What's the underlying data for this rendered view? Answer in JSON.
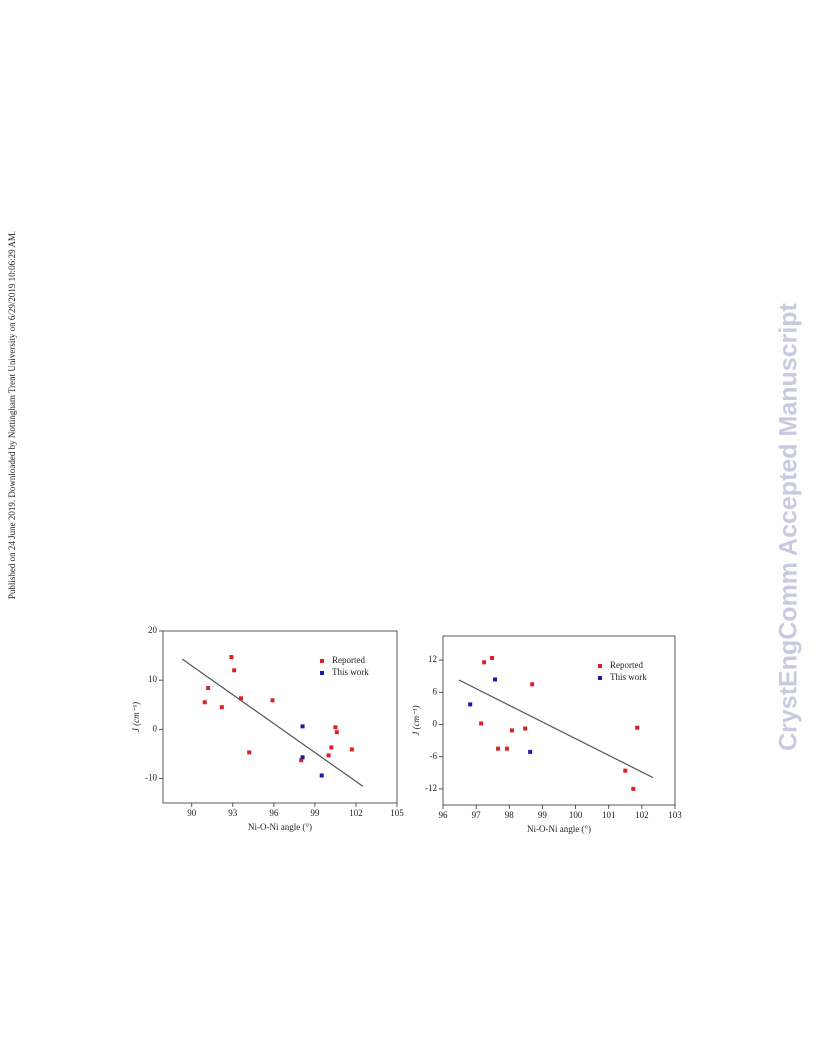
{
  "side_note": "Published on 24 June 2019. Downloaded by Nottingham Trent University on 6/29/2019 10:06:29 AM.",
  "watermark": "CrystEngComm Accepted Manuscript",
  "chart_data": [
    {
      "type": "scatter",
      "xlabel": "Ni-O-Ni angle (°)",
      "ylabel": "J (cm⁻¹)",
      "xlim": [
        87.9,
        105
      ],
      "xticks": [
        90,
        93,
        96,
        99,
        102,
        105
      ],
      "ylim": [
        -15,
        20
      ],
      "yticks": [
        -10,
        0,
        10,
        20
      ],
      "legend": "upper right",
      "series": [
        {
          "name": "Reported",
          "color": "#e02020",
          "x": [
            90.95,
            91.2,
            92.2,
            92.9,
            93.1,
            93.6,
            94.2,
            95.9,
            98.0,
            100.0,
            100.2,
            100.5,
            100.6,
            101.7
          ],
          "y": [
            5.5,
            8.4,
            4.5,
            14.7,
            12.0,
            6.3,
            -4.7,
            5.9,
            -6.3,
            -5.3,
            -3.7,
            0.4,
            -0.6,
            -4.1
          ]
        },
        {
          "name": "This work",
          "color": "#1a1aa8",
          "x": [
            98.1,
            98.1,
            99.5
          ],
          "y": [
            0.6,
            -5.7,
            -9.4
          ]
        }
      ],
      "fit": {
        "color": "#555555",
        "x": [
          89.3,
          102.5
        ],
        "y": [
          14.3,
          -11.6
        ]
      }
    },
    {
      "type": "scatter",
      "xlabel": "Ni-O-Ni angle (°)",
      "ylabel": "J (cm⁻¹)",
      "xlim": [
        96,
        103
      ],
      "xticks": [
        96,
        97,
        98,
        99,
        100,
        101,
        102,
        103
      ],
      "ylim": [
        -15,
        16.5
      ],
      "yticks": [
        -12,
        -6,
        0,
        6,
        12
      ],
      "legend": "upper right",
      "series": [
        {
          "name": "Reported",
          "color": "#e02020",
          "x": [
            97.24,
            97.48,
            97.15,
            97.66,
            97.93,
            98.08,
            98.48,
            98.69,
            101.5,
            101.74,
            101.86
          ],
          "y": [
            11.6,
            12.4,
            0.2,
            -4.5,
            -4.5,
            -1.1,
            -0.75,
            7.5,
            -8.6,
            -12.0,
            -0.6
          ]
        },
        {
          "name": "This work",
          "color": "#1a1aa8",
          "x": [
            96.82,
            97.57,
            98.63
          ],
          "y": [
            3.75,
            8.4,
            -5.1
          ]
        }
      ],
      "fit": {
        "color": "#555555",
        "x": [
          96.48,
          102.34
        ],
        "y": [
          8.3,
          -9.9
        ]
      }
    }
  ]
}
